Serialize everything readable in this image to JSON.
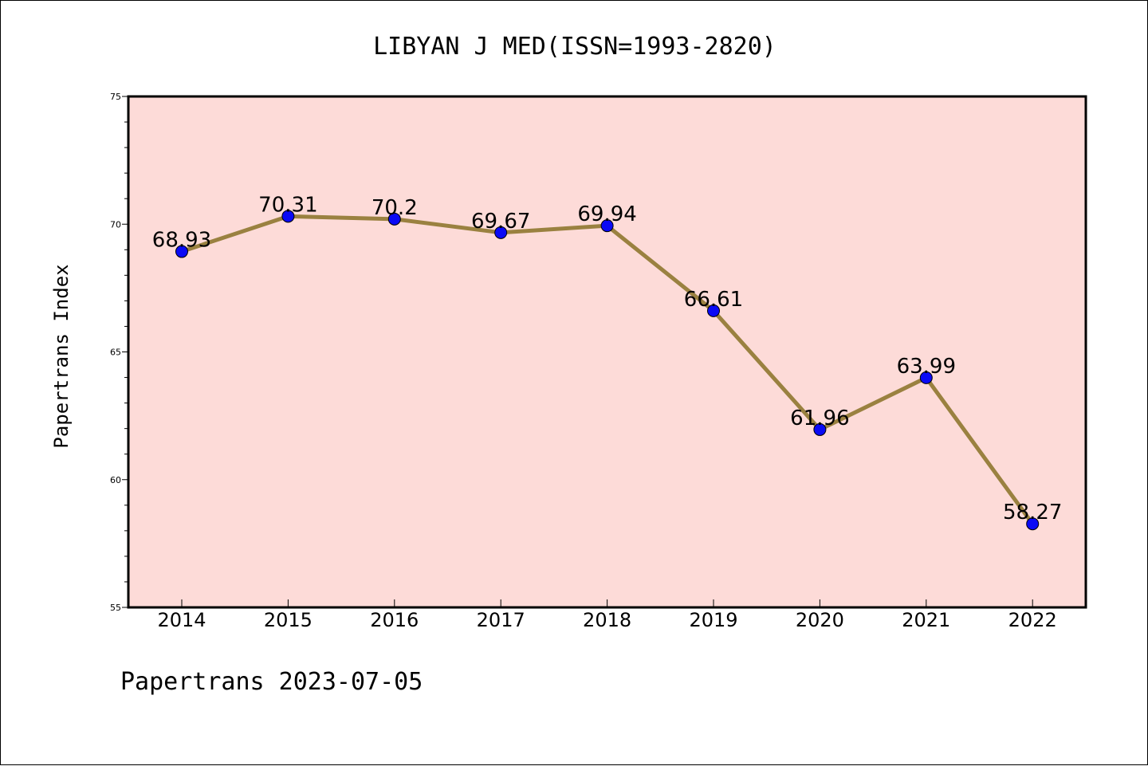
{
  "chart_data": {
    "type": "line",
    "title": "LIBYAN J MED(ISSN=1993-2820)",
    "xlabel": "",
    "ylabel": "Papertrans Index",
    "categories": [
      "2014",
      "2015",
      "2016",
      "2017",
      "2018",
      "2019",
      "2020",
      "2021",
      "2022"
    ],
    "values": [
      68.93,
      70.31,
      70.2,
      69.67,
      69.94,
      66.61,
      61.96,
      63.99,
      58.27
    ],
    "data_labels": [
      "68.93",
      "70.31",
      "70.2",
      "69.67",
      "69.94",
      "66.61",
      "61.96",
      "63.99",
      "58.27"
    ],
    "ylim": [
      55,
      75
    ],
    "yticks": [
      55,
      60,
      65,
      70,
      75
    ],
    "ytick_labels": [
      "55",
      "60",
      "65",
      "70",
      "75"
    ],
    "grid": false,
    "legend": "none",
    "colors": {
      "plot_background": "#fddbd8",
      "line": "#9a8140",
      "marker": "#0a0af5"
    }
  },
  "footer": "Papertrans 2023-07-05"
}
